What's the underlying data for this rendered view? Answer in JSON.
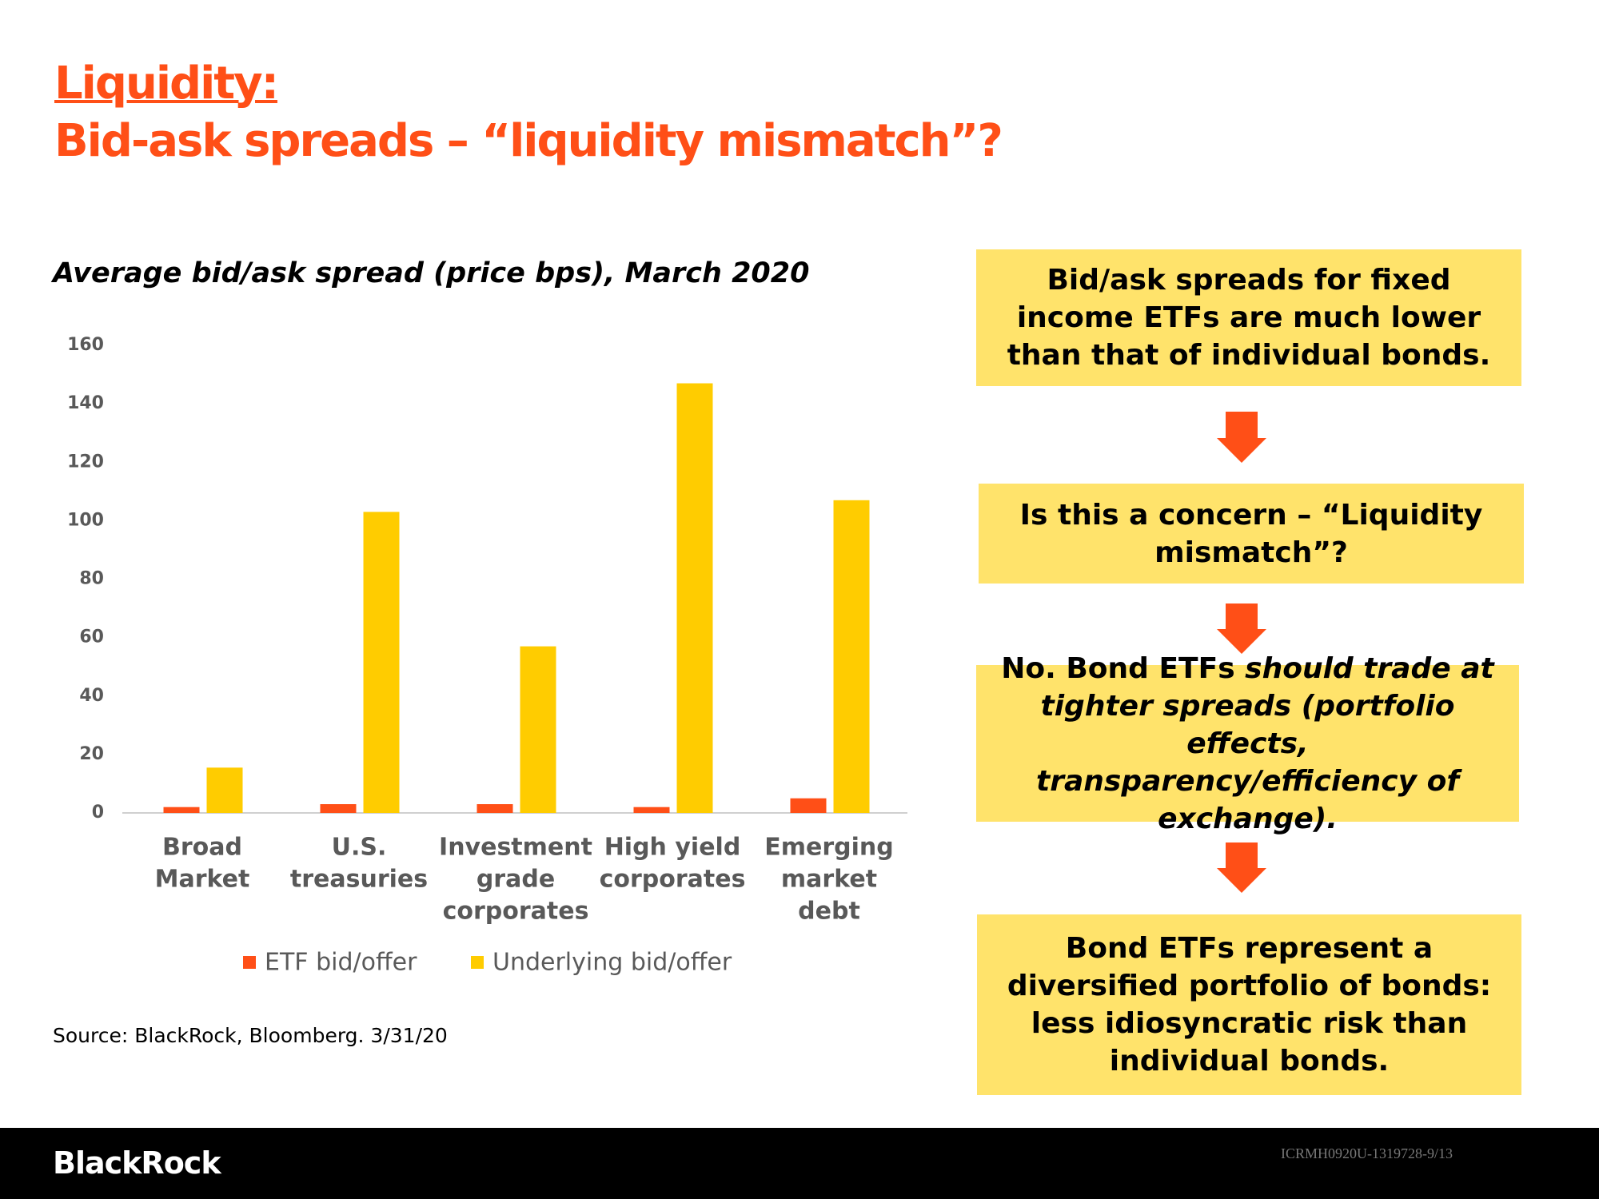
{
  "title_lines": [
    "Liquidity:",
    "Bid-ask spreads – “liquidity mismatch”?"
  ],
  "chart_data": {
    "type": "bar",
    "title": "Average bid/ask spread (price bps), March 2020",
    "categories": [
      "Broad\nMarket",
      "U.S.\ntreasuries",
      "Investment\ngrade\ncorporates",
      "High yield\ncorporates",
      "Emerging\nmarket\ndebt"
    ],
    "series": [
      {
        "name": "ETF bid/offer",
        "color": "#ff4f17",
        "values": [
          2,
          3,
          3,
          2,
          5
        ]
      },
      {
        "name": "Underlying bid/offer",
        "color": "#ffcc00",
        "values": [
          15.5,
          103,
          57,
          147,
          107
        ]
      }
    ],
    "ylim": [
      0,
      160
    ],
    "yticks": [
      0,
      20,
      40,
      60,
      80,
      100,
      120,
      140,
      160
    ],
    "grid": false
  },
  "source": "Source:  BlackRock, Bloomberg.  3/31/20",
  "boxes": [
    [
      {
        "text": "Bid/ask spreads for fixed income ETFs are much lower than that of individual bonds.",
        "italic": false
      }
    ],
    [
      {
        "text": "Is this a concern – “Liquidity mismatch”?",
        "italic": false
      }
    ],
    [
      {
        "text": "No.  Bond ETFs ",
        "italic": false
      },
      {
        "text": "should trade at tighter spreads (portfolio effects, transparency/efficiency of exchange).",
        "italic": true
      }
    ],
    [
      {
        "text": "Bond ETFs represent a diversified portfolio of bonds:  less idiosyncratic risk than individual bonds.",
        "italic": false
      }
    ]
  ],
  "footer": {
    "brand": "BlackRock",
    "code": "ICRMH0920U-1319728-9/13"
  }
}
